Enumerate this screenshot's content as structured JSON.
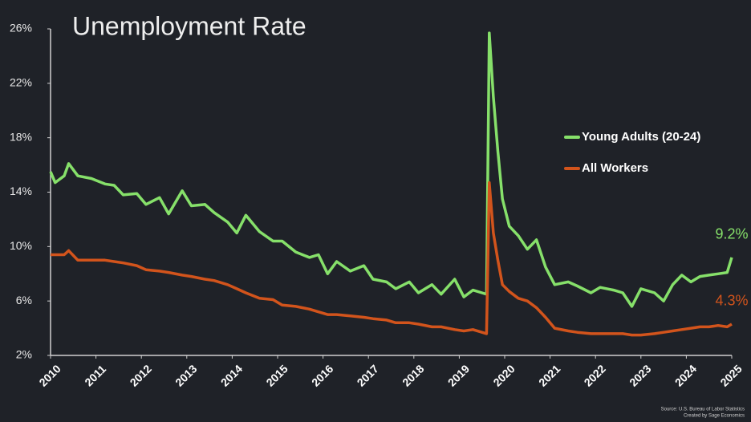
{
  "chart_data": {
    "type": "line",
    "title": "Unemployment Rate",
    "source": "Source: U.S. Bureau of Labor Statistics",
    "credit": "Created by Sage Economics",
    "x": [
      2010.0,
      2010.1,
      2010.3,
      2010.4,
      2010.6,
      2010.9,
      2011.2,
      2011.4,
      2011.6,
      2011.9,
      2012.1,
      2012.4,
      2012.6,
      2012.9,
      2013.1,
      2013.4,
      2013.6,
      2013.9,
      2014.1,
      2014.3,
      2014.6,
      2014.9,
      2015.1,
      2015.4,
      2015.7,
      2015.9,
      2016.1,
      2016.3,
      2016.6,
      2016.9,
      2017.1,
      2017.4,
      2017.6,
      2017.9,
      2018.1,
      2018.4,
      2018.6,
      2018.9,
      2019.1,
      2019.3,
      2019.5,
      2019.6,
      2019.66,
      2019.75,
      2019.85,
      2019.95,
      2020.1,
      2020.3,
      2020.5,
      2020.7,
      2020.9,
      2021.1,
      2021.4,
      2021.6,
      2021.9,
      2022.1,
      2022.4,
      2022.6,
      2022.8,
      2023.0,
      2023.3,
      2023.5,
      2023.7,
      2023.9,
      2024.1,
      2024.3,
      2024.5,
      2024.7,
      2024.9,
      2025.0
    ],
    "series": [
      {
        "name": "Young Adults (20-24)",
        "color": "#86e06a",
        "values": [
          15.5,
          14.7,
          15.2,
          16.1,
          15.2,
          15.0,
          14.6,
          14.5,
          13.8,
          13.9,
          13.1,
          13.6,
          12.4,
          14.1,
          13.0,
          13.1,
          12.5,
          11.8,
          11.0,
          12.3,
          11.1,
          10.4,
          10.4,
          9.6,
          9.2,
          9.4,
          8.0,
          8.9,
          8.2,
          8.6,
          7.6,
          7.4,
          6.9,
          7.4,
          6.6,
          7.2,
          6.5,
          7.6,
          6.3,
          6.8,
          6.6,
          6.5,
          25.7,
          21,
          17,
          13.5,
          11.5,
          10.8,
          9.8,
          10.5,
          8.5,
          7.2,
          7.4,
          7.1,
          6.6,
          7.0,
          6.8,
          6.6,
          5.6,
          6.9,
          6.6,
          6.0,
          7.2,
          7.9,
          7.4,
          7.8,
          7.9,
          8.0,
          8.1,
          9.2
        ],
        "value_labels": [
          null,
          null,
          null,
          null,
          null,
          null,
          null,
          null,
          null,
          null,
          null,
          null,
          null,
          null,
          null,
          null,
          null,
          null,
          null,
          null,
          null,
          null,
          null,
          null,
          null,
          null,
          null,
          null,
          null,
          null,
          null,
          null,
          null,
          null,
          null,
          null,
          null,
          null,
          null,
          null,
          null,
          null,
          null,
          null,
          null,
          null,
          null,
          null,
          null,
          null,
          null,
          null,
          null,
          null,
          null,
          null,
          null,
          null,
          null,
          null,
          null,
          null,
          null,
          null,
          null,
          null,
          null,
          null,
          null,
          "9.2%"
        ]
      },
      {
        "name": "All Workers",
        "color": "#d2541c",
        "values": [
          9.4,
          9.4,
          9.4,
          9.7,
          9.0,
          9.0,
          9.0,
          8.9,
          8.8,
          8.6,
          8.3,
          8.2,
          8.1,
          7.9,
          7.8,
          7.6,
          7.5,
          7.2,
          6.9,
          6.6,
          6.2,
          6.1,
          5.7,
          5.6,
          5.4,
          5.2,
          5.0,
          5.0,
          4.9,
          4.8,
          4.7,
          4.6,
          4.4,
          4.4,
          4.3,
          4.1,
          4.1,
          3.9,
          3.8,
          3.9,
          3.7,
          3.6,
          14.7,
          11,
          9,
          7.2,
          6.7,
          6.2,
          6.0,
          5.5,
          4.8,
          4.0,
          3.8,
          3.7,
          3.6,
          3.6,
          3.6,
          3.6,
          3.5,
          3.5,
          3.6,
          3.7,
          3.8,
          3.9,
          4.0,
          4.1,
          4.1,
          4.2,
          4.1,
          4.3
        ],
        "value_labels": [
          null,
          null,
          null,
          null,
          null,
          null,
          null,
          null,
          null,
          null,
          null,
          null,
          null,
          null,
          null,
          null,
          null,
          null,
          null,
          null,
          null,
          null,
          null,
          null,
          null,
          null,
          null,
          null,
          null,
          null,
          null,
          null,
          null,
          null,
          null,
          null,
          null,
          null,
          null,
          null,
          null,
          null,
          null,
          null,
          null,
          null,
          null,
          null,
          null,
          null,
          null,
          null,
          null,
          null,
          null,
          null,
          null,
          null,
          null,
          null,
          null,
          null,
          null,
          null,
          null,
          null,
          null,
          null,
          null,
          "4.3%"
        ]
      }
    ],
    "xlim": [
      2010,
      2025
    ],
    "xticks": [
      2010,
      2011,
      2012,
      2013,
      2014,
      2015,
      2016,
      2017,
      2018,
      2019,
      2020,
      2021,
      2022,
      2023,
      2024,
      2025
    ],
    "ylim": [
      2,
      26
    ],
    "yticks": [
      {
        "value": 2,
        "label": "2%"
      },
      {
        "value": 6,
        "label": "6%"
      },
      {
        "value": 10,
        "label": "10%"
      },
      {
        "value": 14,
        "label": "14%"
      },
      {
        "value": 18,
        "label": "18%"
      },
      {
        "value": 22,
        "label": "22%"
      },
      {
        "value": 26,
        "label": "26%"
      }
    ],
    "grid": false,
    "legend": "right"
  }
}
